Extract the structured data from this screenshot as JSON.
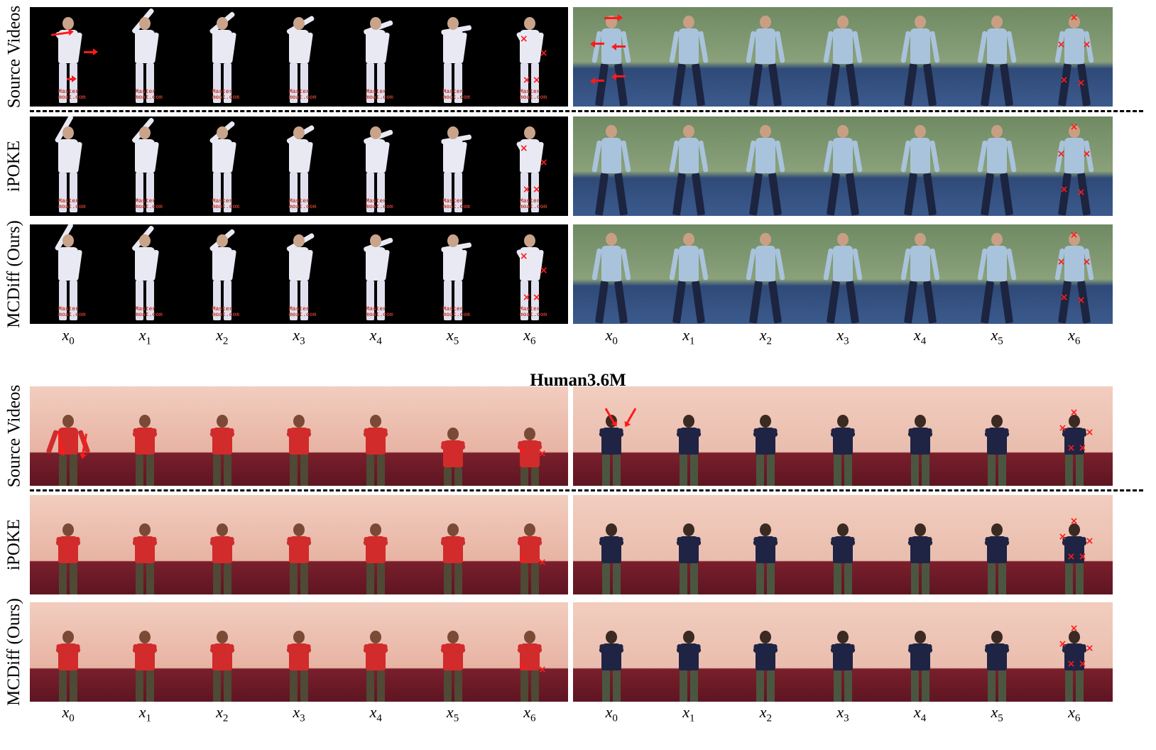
{
  "rows": {
    "source": "Source Videos",
    "ipoke": "iPOKE",
    "ours": "MCDiff (Ours)"
  },
  "frame_labels": [
    {
      "var": "x",
      "sub": "0"
    },
    {
      "var": "x",
      "sub": "1"
    },
    {
      "var": "x",
      "sub": "2"
    },
    {
      "var": "x",
      "sub": "3"
    },
    {
      "var": "x",
      "sub": "4"
    },
    {
      "var": "x",
      "sub": "5"
    },
    {
      "var": "x",
      "sub": "6"
    }
  ],
  "dataset_title": "Human3.6M",
  "watermark": [
    "Master",
    "moat.com"
  ],
  "colors": {
    "tai_chi_bg": "#000000",
    "outdoor_sky": "#6f8a63",
    "outdoor_ground": "#2f4a78",
    "room_wall": "#f2cdbf",
    "room_floor": "#7a1f2c",
    "marker": "#ff1a1a"
  },
  "markers": {
    "point": "×"
  }
}
